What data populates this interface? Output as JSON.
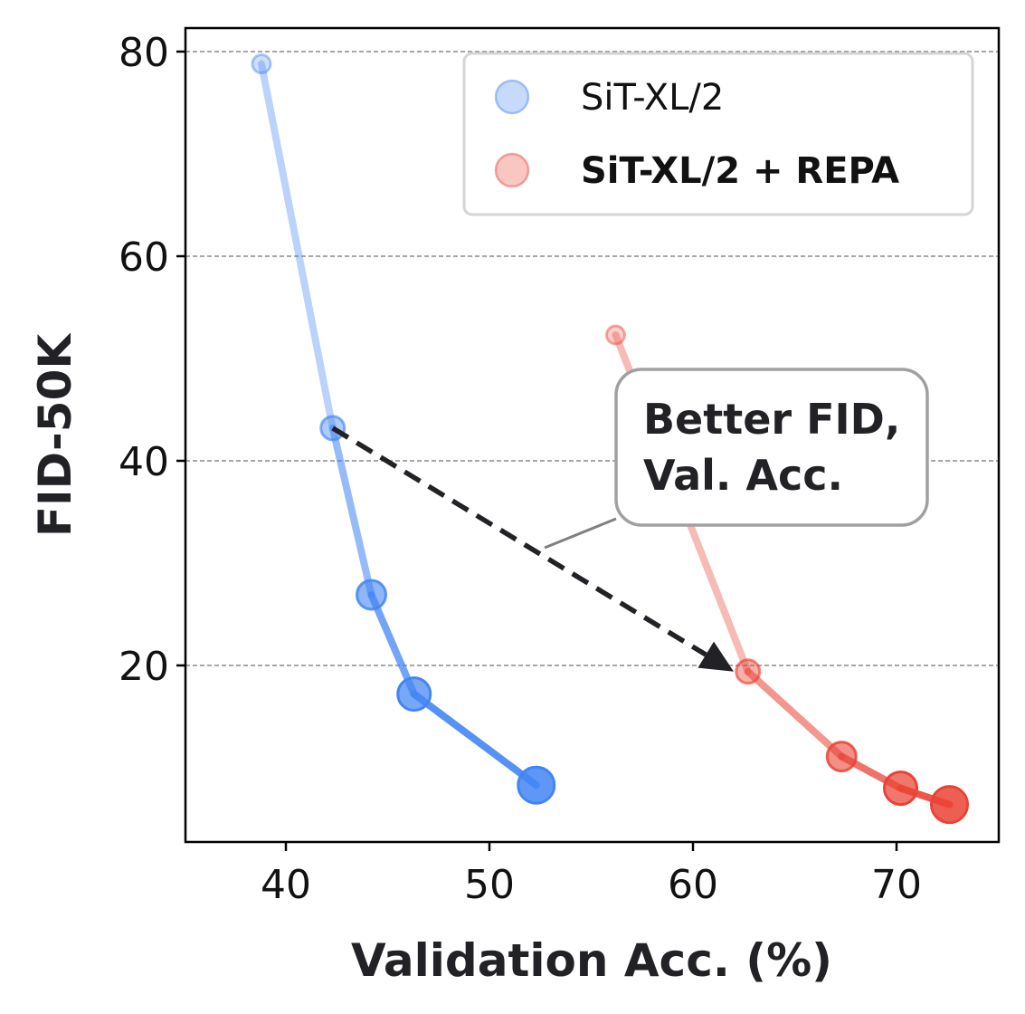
{
  "chart_data": {
    "type": "line",
    "xlabel": "Validation Acc. (%)",
    "ylabel": "FID-50K",
    "xlim": [
      35,
      75
    ],
    "ylim": [
      3,
      82.5
    ],
    "xticks": [
      40,
      50,
      60,
      70
    ],
    "yticks": [
      20,
      40,
      60,
      80
    ],
    "grid": "horizontal dashed",
    "legend_position": "top-right",
    "series": [
      {
        "name": "SiT-XL/2",
        "color": "#4285f4",
        "x": [
          38.8,
          42.3,
          44.2,
          46.3,
          52.3
        ],
        "y": [
          78.8,
          43.2,
          26.9,
          17.2,
          8.3
        ]
      },
      {
        "name": "SiT-XL/2 + REPA",
        "color": "#ea4335",
        "x": [
          56.2,
          62.7,
          67.3,
          70.2,
          72.6
        ],
        "y": [
          52.3,
          19.4,
          11.1,
          8.0,
          6.4
        ]
      }
    ],
    "annotation": {
      "lines": [
        "Better FID,",
        "Val. Acc."
      ],
      "arrow_from": [
        42.3,
        43.2
      ],
      "arrow_to": [
        62.0,
        19.4
      ]
    }
  }
}
